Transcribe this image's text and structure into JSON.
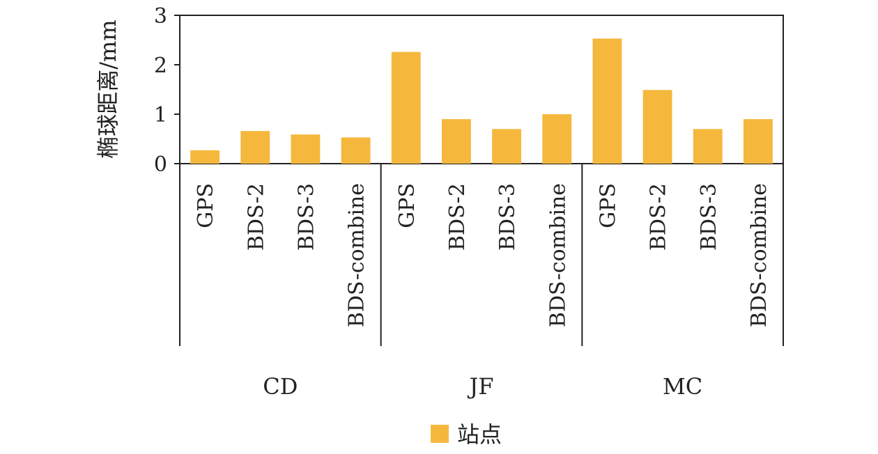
{
  "chart_data": {
    "type": "bar",
    "ylabel": "椭球距离/mm",
    "ylim": [
      0,
      3
    ],
    "yticks": [
      "0",
      "1",
      "2",
      "3"
    ],
    "groups": [
      {
        "name": "CD",
        "categories": [
          "GPS",
          "BDS-2",
          "BDS-3",
          "BDS-combine"
        ],
        "values": [
          0.27,
          0.66,
          0.59,
          0.53
        ]
      },
      {
        "name": "JF",
        "categories": [
          "GPS",
          "BDS-2",
          "BDS-3",
          "BDS-combine"
        ],
        "values": [
          2.26,
          0.9,
          0.7,
          1.0
        ]
      },
      {
        "name": "MC",
        "categories": [
          "GPS",
          "BDS-2",
          "BDS-3",
          "BDS-combine"
        ],
        "values": [
          2.53,
          1.49,
          0.7,
          0.9
        ]
      }
    ],
    "series": [
      {
        "name": "站点",
        "color": "#F5B83D"
      }
    ],
    "legend": "bottom",
    "grid": false
  }
}
